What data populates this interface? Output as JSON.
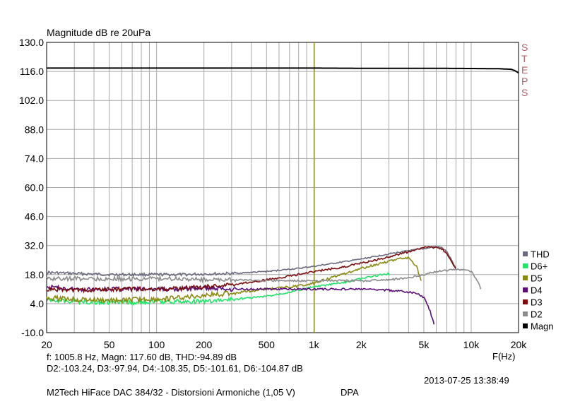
{
  "chart_data": {
    "type": "line",
    "ylabel": "Magnitude dB re 20uPa",
    "xlabel": "F(Hz)",
    "x_scale": "log",
    "xlim": [
      20,
      20000
    ],
    "ylim": [
      -10,
      130
    ],
    "grid": true,
    "y_ticks": [
      "130.0",
      "116.0",
      "102.0",
      "88.0",
      "74.0",
      "60.0",
      "46.0",
      "32.0",
      "18.0",
      "4.0",
      "-10.0"
    ],
    "x_ticks": [
      {
        "value": 20,
        "label": "20"
      },
      {
        "value": 50,
        "label": "50"
      },
      {
        "value": 100,
        "label": "100"
      },
      {
        "value": 200,
        "label": "200"
      },
      {
        "value": 500,
        "label": "500"
      },
      {
        "value": 1000,
        "label": "1k"
      },
      {
        "value": 2000,
        "label": "2k"
      },
      {
        "value": 5000,
        "label": "5k"
      },
      {
        "value": 10000,
        "label": "10k"
      },
      {
        "value": 20000,
        "label": "20k"
      }
    ],
    "cursor_frequency": 1005.8,
    "legend_position": "right",
    "series": [
      {
        "name": "THD",
        "color": "#6b6b80",
        "x": [
          20,
          30,
          50,
          80,
          100,
          150,
          200,
          300,
          500,
          800,
          1000,
          1500,
          2000,
          3000,
          4000,
          5000,
          5500,
          6000,
          6500,
          7000,
          7500,
          8000
        ],
        "y": [
          19,
          18.5,
          18,
          18,
          18,
          18,
          18.3,
          18.5,
          19.5,
          21,
          22,
          24,
          25.5,
          28,
          29.5,
          30.5,
          31,
          31.5,
          31,
          29,
          25,
          21
        ]
      },
      {
        "name": "D6+",
        "color": "#22e36a",
        "x": [
          20,
          30,
          50,
          80,
          100,
          150,
          200,
          300,
          500,
          800,
          1000,
          1500,
          2000,
          2500,
          3000
        ],
        "y": [
          6,
          5,
          4.5,
          4.5,
          5,
          5,
          5,
          6,
          7.5,
          10.5,
          12,
          14,
          16,
          17.5,
          18.5
        ]
      },
      {
        "name": "D5",
        "color": "#8a8a12",
        "x": [
          20,
          30,
          50,
          80,
          100,
          150,
          200,
          300,
          500,
          800,
          1000,
          1500,
          2000,
          3000,
          3500,
          4000,
          4500,
          4800
        ],
        "y": [
          7,
          6,
          5.5,
          6,
          6,
          7,
          8,
          9,
          11,
          12.5,
          14,
          18,
          21,
          24.5,
          25.5,
          26,
          22,
          15
        ]
      },
      {
        "name": "D4",
        "color": "#5a0f78",
        "x": [
          20,
          30,
          50,
          80,
          100,
          150,
          200,
          300,
          500,
          800,
          1000,
          1500,
          2000,
          3000,
          4000,
          4500,
          5000,
          5300,
          5500,
          5800
        ],
        "y": [
          12,
          11,
          11,
          11,
          11,
          11,
          11.5,
          11,
          11,
          11,
          11,
          11,
          11,
          10.5,
          9.5,
          9,
          7,
          3,
          0,
          -6
        ]
      },
      {
        "name": "D3",
        "color": "#7a0d0d",
        "x": [
          20,
          30,
          50,
          80,
          100,
          150,
          200,
          300,
          500,
          800,
          1000,
          1500,
          2000,
          3000,
          4000,
          5000,
          5500,
          6000,
          6500,
          7000,
          7500,
          8000
        ],
        "y": [
          11,
          10.5,
          11,
          11,
          11,
          11.5,
          12,
          13,
          15.5,
          18,
          19.5,
          21.5,
          23.5,
          26.5,
          29,
          31,
          31.3,
          31,
          30.5,
          28,
          24,
          20.5
        ]
      },
      {
        "name": "D2",
        "color": "#8c8c8c",
        "x": [
          20,
          30,
          50,
          80,
          100,
          150,
          200,
          300,
          500,
          800,
          1000,
          1500,
          2000,
          3000,
          4000,
          5000,
          6000,
          7000,
          8000,
          9000,
          10000,
          11000,
          11500
        ],
        "y": [
          16,
          16,
          16,
          16,
          16,
          16,
          15.5,
          15.5,
          15,
          15,
          15,
          15,
          15,
          15.5,
          16.5,
          18,
          19.5,
          20,
          20.5,
          20.5,
          19.5,
          15,
          11
        ]
      },
      {
        "name": "Magn",
        "color": "#000000",
        "x": [
          20,
          50,
          100,
          200,
          500,
          1000,
          2000,
          5000,
          10000,
          15000,
          18000,
          19000,
          20000
        ],
        "y": [
          117.6,
          117.6,
          117.6,
          117.6,
          117.6,
          117.6,
          117.5,
          117.5,
          117.4,
          117.3,
          117.0,
          116.3,
          115.3
        ]
      }
    ]
  },
  "steps_label": [
    "S",
    "T",
    "E",
    "P",
    "S"
  ],
  "readout_line1": "f: 1005.8 Hz, Magn: 117.60 dB, THD:-94.89  dB",
  "readout_line2": "D2:-103.24, D3:-97.94, D4:-108.35, D5:-101.61, D6:-104.87 dB",
  "timestamp": "2013-07-25 13:38:49",
  "footer_title": "M2Tech HiFace DAC 384/32 - Distorsioni Armoniche (1,05 V)",
  "footer_tag": "DPA",
  "colors": {
    "grid": "#a9a9a9",
    "cursor": "#9a9a28",
    "steps": "#b0606a"
  }
}
